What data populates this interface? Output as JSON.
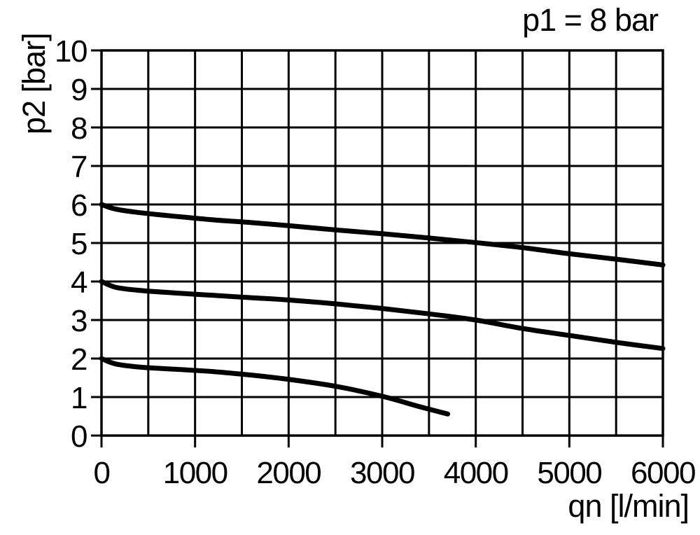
{
  "title": "p1 = 8 bar",
  "chart_data": {
    "type": "line",
    "title": "p1 = 8 bar",
    "xlabel": "qn [l/min]",
    "ylabel": "p2 [bar]",
    "xlim": [
      0,
      6000
    ],
    "ylim": [
      0,
      10
    ],
    "x_major_ticks": [
      0,
      1000,
      2000,
      3000,
      4000,
      5000,
      6000
    ],
    "x_grid_step": 500,
    "y_ticks": [
      0,
      1,
      2,
      3,
      4,
      5,
      6,
      7,
      8,
      9,
      10
    ],
    "grid": true,
    "legend_position": "none",
    "line_color": "#000000",
    "series": [
      {
        "name": "outlet-pressure-set-6bar",
        "points": [
          [
            0,
            6.0
          ],
          [
            150,
            5.88
          ],
          [
            400,
            5.79
          ],
          [
            800,
            5.69
          ],
          [
            1200,
            5.6
          ],
          [
            1600,
            5.53
          ],
          [
            2000,
            5.45
          ],
          [
            2500,
            5.34
          ],
          [
            3000,
            5.24
          ],
          [
            3500,
            5.13
          ],
          [
            4000,
            5.01
          ],
          [
            4500,
            4.88
          ],
          [
            5000,
            4.72
          ],
          [
            5500,
            4.58
          ],
          [
            6000,
            4.43
          ]
        ]
      },
      {
        "name": "outlet-pressure-set-4bar",
        "points": [
          [
            0,
            4.0
          ],
          [
            150,
            3.85
          ],
          [
            400,
            3.77
          ],
          [
            800,
            3.7
          ],
          [
            1200,
            3.64
          ],
          [
            1600,
            3.58
          ],
          [
            2000,
            3.52
          ],
          [
            2500,
            3.42
          ],
          [
            3000,
            3.3
          ],
          [
            3500,
            3.16
          ],
          [
            4000,
            3.0
          ],
          [
            4500,
            2.78
          ],
          [
            5000,
            2.6
          ],
          [
            5500,
            2.42
          ],
          [
            6000,
            2.26
          ]
        ]
      },
      {
        "name": "outlet-pressure-set-2bar",
        "points": [
          [
            0,
            2.0
          ],
          [
            150,
            1.86
          ],
          [
            400,
            1.78
          ],
          [
            800,
            1.72
          ],
          [
            1200,
            1.66
          ],
          [
            1600,
            1.57
          ],
          [
            2000,
            1.46
          ],
          [
            2500,
            1.28
          ],
          [
            3000,
            1.02
          ],
          [
            3400,
            0.75
          ],
          [
            3700,
            0.56
          ]
        ]
      }
    ]
  },
  "colors": {
    "background": "#ffffff",
    "foreground": "#000000"
  }
}
